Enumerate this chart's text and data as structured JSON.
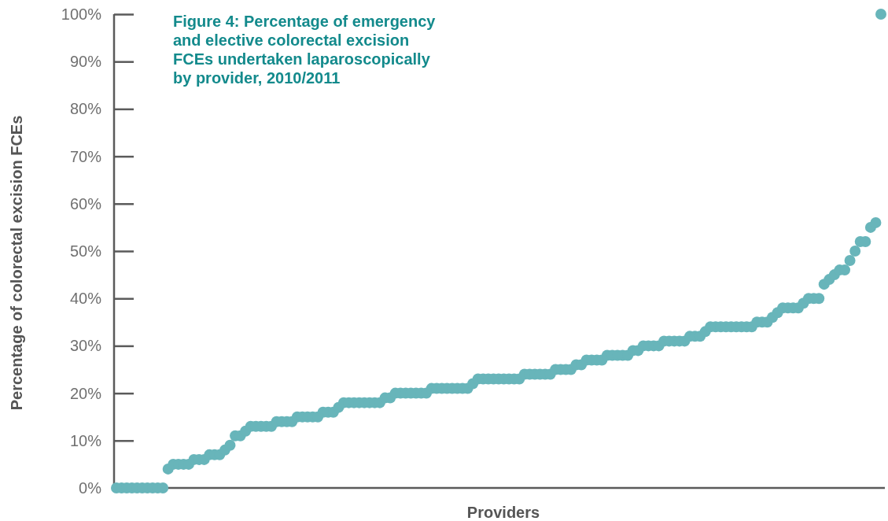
{
  "chart_data": {
    "type": "scatter",
    "title": "Figure 4: Percentage of emergency and elective colorectal excision FCEs undertaken laparoscopically by provider, 2010/2011",
    "xlabel": "Providers",
    "ylabel": "Percentage of colorectal excision FCEs",
    "categories": [
      null,
      null,
      null,
      null,
      null,
      null,
      null,
      null,
      null,
      null,
      null,
      null,
      null,
      null,
      null,
      null,
      null,
      null,
      null,
      null,
      null,
      null,
      null,
      null,
      null,
      null,
      null,
      null,
      null,
      null,
      null,
      null,
      null,
      null,
      null,
      null,
      null,
      null,
      null,
      null,
      null,
      null,
      null,
      null,
      null,
      null,
      null,
      null,
      null,
      null,
      null,
      null,
      null,
      null,
      null,
      null,
      null,
      null,
      null,
      null,
      null,
      null,
      null,
      null,
      null,
      null,
      null,
      null,
      null,
      null,
      null,
      null,
      null,
      null,
      null,
      null,
      null,
      null,
      null,
      null,
      null,
      null,
      null,
      null,
      null,
      null,
      null,
      null,
      null,
      null,
      null,
      null,
      null,
      null,
      null,
      null,
      null,
      null,
      null,
      null,
      null,
      null,
      null,
      null,
      null,
      null,
      null,
      null,
      null,
      null,
      null,
      null,
      null,
      null,
      null,
      null,
      null,
      null,
      null,
      null,
      null,
      null,
      null,
      null,
      null,
      null,
      null,
      null,
      null,
      null,
      null,
      null,
      null,
      null,
      null,
      null,
      null,
      null,
      null,
      null,
      null,
      null,
      null,
      null,
      null,
      null,
      null,
      null,
      null
    ],
    "series": [
      {
        "color": "#68b5ba",
        "values": [
          0,
          0,
          0,
          0,
          0,
          0,
          0,
          0,
          0,
          0,
          4,
          5,
          5,
          5,
          5,
          6,
          6,
          6,
          7,
          7,
          7,
          8,
          9,
          11,
          11,
          12,
          13,
          13,
          13,
          13,
          13,
          14,
          14,
          14,
          14,
          15,
          15,
          15,
          15,
          15,
          16,
          16,
          16,
          17,
          18,
          18,
          18,
          18,
          18,
          18,
          18,
          18,
          19,
          19,
          20,
          20,
          20,
          20,
          20,
          20,
          20,
          21,
          21,
          21,
          21,
          21,
          21,
          21,
          21,
          22,
          23,
          23,
          23,
          23,
          23,
          23,
          23,
          23,
          23,
          24,
          24,
          24,
          24,
          24,
          24,
          25,
          25,
          25,
          25,
          26,
          26,
          27,
          27,
          27,
          27,
          28,
          28,
          28,
          28,
          28,
          29,
          29,
          30,
          30,
          30,
          30,
          31,
          31,
          31,
          31,
          31,
          32,
          32,
          32,
          33,
          34,
          34,
          34,
          34,
          34,
          34,
          34,
          34,
          34,
          35,
          35,
          35,
          36,
          37,
          38,
          38,
          38,
          38,
          39,
          40,
          40,
          40,
          43,
          44,
          45,
          46,
          46,
          48,
          50,
          52,
          52,
          55,
          56,
          100
        ]
      }
    ],
    "ylim": [
      0,
      100
    ],
    "yticks": [
      {
        "value": 0,
        "label": "0%"
      },
      {
        "value": 10,
        "label": "10%"
      },
      {
        "value": 20,
        "label": "20%"
      },
      {
        "value": 30,
        "label": "30%"
      },
      {
        "value": 40,
        "label": "40%"
      },
      {
        "value": 50,
        "label": "50%"
      },
      {
        "value": 60,
        "label": "60%"
      },
      {
        "value": 70,
        "label": "70%"
      },
      {
        "value": 80,
        "label": "80%"
      },
      {
        "value": 90,
        "label": "90%"
      },
      {
        "value": 100,
        "label": "100%"
      }
    ],
    "grid": false,
    "marker": "circle",
    "tick_labels": "y"
  }
}
